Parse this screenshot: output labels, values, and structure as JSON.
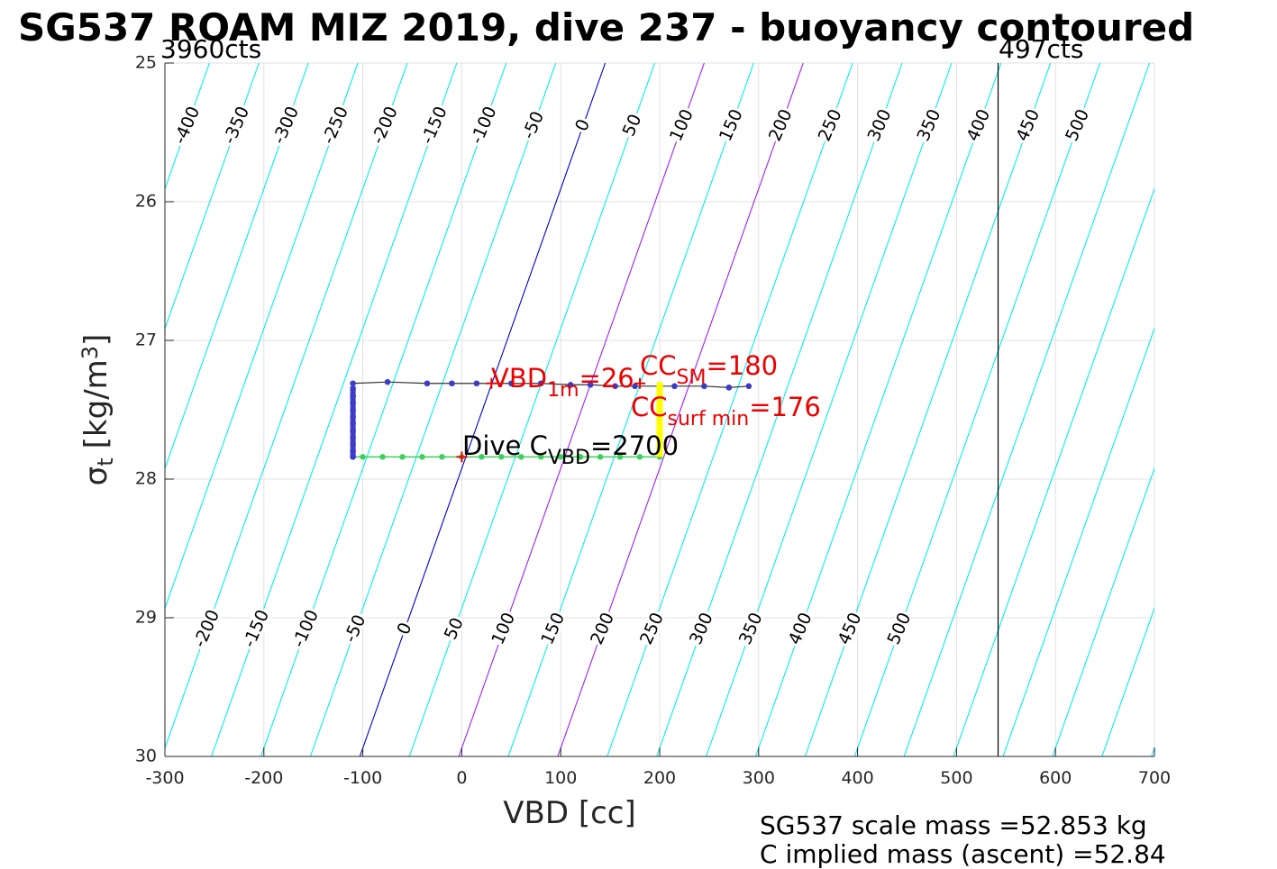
{
  "title": "SG537 ROAM MIZ 2019, dive 237 - buoyancy contoured",
  "top_left_label": "3960cts",
  "top_right_label": "497cts",
  "footer": {
    "line1": "SG537 scale mass =52.853 kg",
    "line2": "C   implied mass (ascent) =52.84"
  },
  "colors": {
    "contour": "#00eeee",
    "contour_zero": "#0000cc",
    "contour_highlight": "#a020f0",
    "annotation_red": "#ee0000",
    "descent": "#3ccf5a",
    "ascent": "#3c3cc8",
    "surface_marker": "#ffff00",
    "grid": "#e0e0e0"
  },
  "chart_data": {
    "type": "scatter",
    "xlabel": "VBD [cc]",
    "ylabel_main": "σ",
    "ylabel_sub": "t",
    "ylabel_unit": "[kg/m",
    "ylabel_sup": "3",
    "ylabel_close": "]",
    "xlim": [
      -300,
      700
    ],
    "ylim": [
      25,
      30
    ],
    "y_reversed": true,
    "grid": true,
    "xticks": [
      -300,
      -200,
      -100,
      0,
      100,
      200,
      300,
      400,
      500,
      600,
      700
    ],
    "yticks": [
      25,
      26,
      27,
      28,
      29,
      30
    ],
    "vertical_line_x": 542,
    "buoyancy_contours": {
      "levels": [
        -450,
        -400,
        -350,
        -300,
        -250,
        -200,
        -150,
        -100,
        -50,
        0,
        50,
        100,
        150,
        200,
        250,
        300,
        350,
        400,
        450,
        500,
        550,
        600,
        650,
        700,
        750,
        800
      ],
      "zero_at_sigma25": 145,
      "zero_at_sigma30": -103,
      "highlight_levels": [
        100,
        200
      ],
      "labels_top": [
        "-400",
        "-350",
        "-300",
        "-250",
        "-200",
        "-150",
        "-100",
        "-50",
        "0",
        "50",
        "100",
        "150",
        "200",
        "250",
        "300",
        "350",
        "400",
        "450",
        "500"
      ],
      "labels_bottom": [
        "-200",
        "-150",
        "-100",
        "-50",
        "0",
        "50",
        "100",
        "150",
        "200",
        "250",
        "300",
        "350",
        "400",
        "450",
        "500"
      ]
    },
    "series": [
      {
        "points": [
          [
            200,
            27.84
          ],
          [
            180,
            27.84
          ],
          [
            160,
            27.84
          ],
          [
            140,
            27.84
          ],
          [
            120,
            27.84
          ],
          [
            100,
            27.84
          ],
          [
            80,
            27.84
          ],
          [
            60,
            27.84
          ],
          [
            40,
            27.84
          ],
          [
            20,
            27.84
          ],
          [
            0,
            27.84
          ],
          [
            -20,
            27.84
          ],
          [
            -40,
            27.84
          ],
          [
            -60,
            27.84
          ],
          [
            -80,
            27.84
          ],
          [
            -100,
            27.84
          ],
          [
            -110,
            27.84
          ]
        ]
      },
      {
        "points": [
          [
            -110,
            27.84
          ],
          [
            -110,
            27.8
          ],
          [
            -110,
            27.75
          ],
          [
            -110,
            27.7
          ],
          [
            -110,
            27.65
          ],
          [
            -110,
            27.6
          ],
          [
            -110,
            27.55
          ],
          [
            -110,
            27.5
          ],
          [
            -110,
            27.45
          ],
          [
            -110,
            27.4
          ],
          [
            -110,
            27.35
          ],
          [
            -110,
            27.31
          ],
          [
            -75,
            27.3
          ],
          [
            -35,
            27.31
          ],
          [
            -10,
            27.31
          ],
          [
            15,
            27.31
          ],
          [
            50,
            27.31
          ],
          [
            80,
            27.31
          ],
          [
            110,
            27.32
          ],
          [
            130,
            27.32
          ],
          [
            155,
            27.33
          ],
          [
            175,
            27.33
          ],
          [
            215,
            27.33
          ],
          [
            245,
            27.33
          ],
          [
            270,
            27.34
          ],
          [
            290,
            27.33
          ]
        ]
      }
    ],
    "surface_segment": {
      "x": 200,
      "y_top": 27.3,
      "y_bottom": 27.84
    },
    "annotations": [
      {
        "main": "VBD",
        "sub": "1m",
        "tail": "=26",
        "x": 30,
        "y": 27.31
      },
      {
        "main": "CC",
        "sub": "SM",
        "tail": "=180",
        "x": 180,
        "y": 27.31
      },
      {
        "main": "CC",
        "sub": "surf min",
        "tail": "=176",
        "x": 176,
        "y": 27.31
      },
      {
        "main": "Dive C",
        "sub": "VBD",
        "tail": "=2700",
        "x": 0,
        "y": 27.84
      }
    ]
  }
}
